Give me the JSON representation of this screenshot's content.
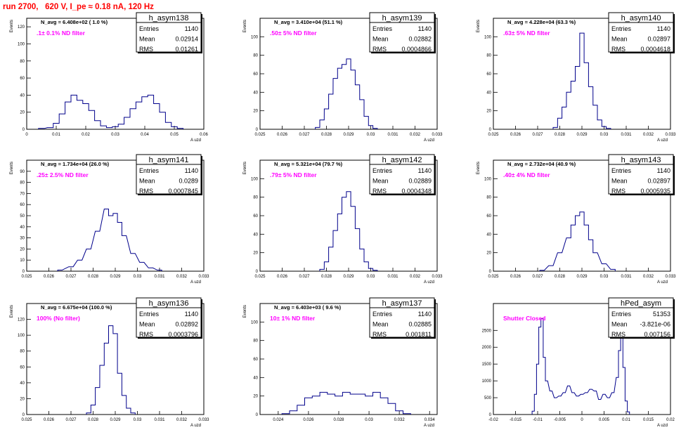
{
  "page": {
    "title": "run 2700,   620 V, I_pe ≈ 0.18 nA, 120 Hz"
  },
  "stat_labels": {
    "entries": "Entries",
    "mean": "Mean",
    "rms": "RMS"
  },
  "colors": {
    "histogram": "#00008b",
    "annotation": "#ff00ff",
    "title": "#ff0000",
    "frame": "#000000"
  },
  "chart_data": [
    {
      "type": "histogram",
      "name": "h_asym138",
      "title": "N_avg = 6.408e+02 ( 1.0 %)",
      "annotation": ".1± 0.1% ND filter",
      "stats": {
        "entries": "1140",
        "mean": "0.02914",
        "rms": "0.01261"
      },
      "xlabel": "A_uzd",
      "ylabel": "Events",
      "xlim": [
        0,
        0.06
      ],
      "ylim": [
        0,
        130
      ],
      "xticks": [
        0,
        0.01,
        0.02,
        0.03,
        0.04,
        0.05,
        0.06
      ],
      "xtick_labels": [
        "0",
        "0.01",
        "0.02",
        "0.03",
        "0.04",
        "0.05",
        "0.06"
      ],
      "yticks": [
        0,
        20,
        40,
        60,
        80,
        100,
        120
      ],
      "points": [
        [
          0.005,
          1
        ],
        [
          0.008,
          2
        ],
        [
          0.01,
          7
        ],
        [
          0.012,
          18
        ],
        [
          0.014,
          32
        ],
        [
          0.016,
          40
        ],
        [
          0.018,
          34
        ],
        [
          0.02,
          30
        ],
        [
          0.022,
          22
        ],
        [
          0.024,
          10
        ],
        [
          0.026,
          4
        ],
        [
          0.028,
          2
        ],
        [
          0.03,
          3
        ],
        [
          0.032,
          6
        ],
        [
          0.034,
          14
        ],
        [
          0.036,
          24
        ],
        [
          0.038,
          32
        ],
        [
          0.04,
          38
        ],
        [
          0.042,
          40
        ],
        [
          0.044,
          30
        ],
        [
          0.046,
          20
        ],
        [
          0.048,
          8
        ],
        [
          0.05,
          3
        ],
        [
          0.052,
          1
        ]
      ]
    },
    {
      "type": "histogram",
      "name": "h_asym139",
      "title": "N_avg = 3.410e+04 (51.1 %)",
      "annotation": ".50± 5% ND filter",
      "stats": {
        "entries": "1140",
        "mean": "0.02882",
        "rms": "0.0004866"
      },
      "xlabel": "A_uzd",
      "ylabel": "Events",
      "xlim": [
        0.025,
        0.033
      ],
      "ylim": [
        0,
        120
      ],
      "xticks": [
        0.025,
        0.026,
        0.027,
        0.028,
        0.029,
        0.03,
        0.031,
        0.032,
        0.033
      ],
      "xtick_labels": [
        "0.025",
        "0.026",
        "0.027",
        "0.028",
        "0.029",
        "0.03",
        "0.031",
        "0.032",
        "0.033"
      ],
      "yticks": [
        0,
        20,
        40,
        60,
        80,
        100
      ],
      "points": [
        [
          0.0276,
          2
        ],
        [
          0.0278,
          10
        ],
        [
          0.028,
          22
        ],
        [
          0.0282,
          38
        ],
        [
          0.0284,
          55
        ],
        [
          0.0286,
          66
        ],
        [
          0.0288,
          70
        ],
        [
          0.029,
          76
        ],
        [
          0.0292,
          64
        ],
        [
          0.0294,
          48
        ],
        [
          0.0296,
          32
        ],
        [
          0.0298,
          14
        ],
        [
          0.03,
          4
        ],
        [
          0.0302,
          1
        ]
      ]
    },
    {
      "type": "histogram",
      "name": "h_asym140",
      "title": "N_avg = 4.228e+04 (63.3 %)",
      "annotation": ".63± 5% ND filter",
      "stats": {
        "entries": "1140",
        "mean": "0.02897",
        "rms": "0.0004618"
      },
      "xlabel": "A_uzd",
      "ylabel": "Events",
      "xlim": [
        0.025,
        0.033
      ],
      "ylim": [
        0,
        120
      ],
      "xticks": [
        0.025,
        0.026,
        0.027,
        0.028,
        0.029,
        0.03,
        0.031,
        0.032,
        0.033
      ],
      "xtick_labels": [
        "0.025",
        "0.026",
        "0.027",
        "0.028",
        "0.029",
        "0.03",
        "0.031",
        "0.032",
        "0.033"
      ],
      "yticks": [
        0,
        20,
        40,
        60,
        80,
        100
      ],
      "points": [
        [
          0.0278,
          2
        ],
        [
          0.028,
          12
        ],
        [
          0.0282,
          24
        ],
        [
          0.0284,
          40
        ],
        [
          0.0286,
          52
        ],
        [
          0.0288,
          68
        ],
        [
          0.029,
          104
        ],
        [
          0.0292,
          72
        ],
        [
          0.0294,
          46
        ],
        [
          0.0296,
          26
        ],
        [
          0.0298,
          10
        ],
        [
          0.03,
          3
        ],
        [
          0.0302,
          1
        ]
      ]
    },
    {
      "type": "histogram",
      "name": "h_asym141",
      "title": "N_avg = 1.734e+04 (26.0 %)",
      "annotation": ".25± 2.5% ND filter",
      "stats": {
        "entries": "1140",
        "mean": "0.0289",
        "rms": "0.0007845"
      },
      "xlabel": "A_uzd",
      "ylabel": "Events",
      "xlim": [
        0.025,
        0.033
      ],
      "ylim": [
        0,
        100
      ],
      "xticks": [
        0.025,
        0.026,
        0.027,
        0.028,
        0.029,
        0.03,
        0.031,
        0.032,
        0.033
      ],
      "xtick_labels": [
        "0.025",
        "0.026",
        "0.027",
        "0.028",
        "0.029",
        "0.03",
        "0.031",
        "0.032",
        "0.033"
      ],
      "yticks": [
        0,
        10,
        20,
        30,
        40,
        50,
        60,
        70,
        80,
        90
      ],
      "points": [
        [
          0.0265,
          1
        ],
        [
          0.027,
          4
        ],
        [
          0.0274,
          10
        ],
        [
          0.0278,
          20
        ],
        [
          0.0282,
          36
        ],
        [
          0.0286,
          56
        ],
        [
          0.0288,
          50
        ],
        [
          0.029,
          52
        ],
        [
          0.0292,
          44
        ],
        [
          0.0294,
          32
        ],
        [
          0.0298,
          16
        ],
        [
          0.0302,
          8
        ],
        [
          0.0306,
          3
        ],
        [
          0.031,
          1
        ]
      ]
    },
    {
      "type": "histogram",
      "name": "h_asym142",
      "title": "N_avg = 5.321e+04 (79.7 %)",
      "annotation": ".79± 5% ND filter",
      "stats": {
        "entries": "1140",
        "mean": "0.02889",
        "rms": "0.0004348"
      },
      "xlabel": "A_uzd",
      "ylabel": "Events",
      "xlim": [
        0.025,
        0.033
      ],
      "ylim": [
        0,
        120
      ],
      "xticks": [
        0.025,
        0.026,
        0.027,
        0.028,
        0.029,
        0.03,
        0.031,
        0.032,
        0.033
      ],
      "xtick_labels": [
        "0.025",
        "0.026",
        "0.027",
        "0.028",
        "0.029",
        "0.03",
        "0.031",
        "0.032",
        "0.033"
      ],
      "yticks": [
        0,
        20,
        40,
        60,
        80,
        100
      ],
      "points": [
        [
          0.0278,
          2
        ],
        [
          0.028,
          10
        ],
        [
          0.0282,
          26
        ],
        [
          0.0284,
          44
        ],
        [
          0.0286,
          62
        ],
        [
          0.0288,
          80
        ],
        [
          0.029,
          86
        ],
        [
          0.0292,
          70
        ],
        [
          0.0294,
          46
        ],
        [
          0.0296,
          24
        ],
        [
          0.0298,
          10
        ],
        [
          0.03,
          3
        ],
        [
          0.0302,
          1
        ]
      ]
    },
    {
      "type": "histogram",
      "name": "h_asym143",
      "title": "N_avg = 2.732e+04 (40.9 %)",
      "annotation": ".40± 4% ND filter",
      "stats": {
        "entries": "1140",
        "mean": "0.02897",
        "rms": "0.0005935"
      },
      "xlabel": "A_uzd",
      "ylabel": "Events",
      "xlim": [
        0.025,
        0.033
      ],
      "ylim": [
        0,
        120
      ],
      "xticks": [
        0.025,
        0.026,
        0.027,
        0.028,
        0.029,
        0.03,
        0.031,
        0.032,
        0.033
      ],
      "xtick_labels": [
        "0.025",
        "0.026",
        "0.027",
        "0.028",
        "0.029",
        "0.03",
        "0.031",
        "0.032",
        "0.033"
      ],
      "yticks": [
        0,
        20,
        40,
        60,
        80,
        100
      ],
      "points": [
        [
          0.0272,
          1
        ],
        [
          0.0276,
          6
        ],
        [
          0.028,
          20
        ],
        [
          0.0284,
          36
        ],
        [
          0.0286,
          50
        ],
        [
          0.0288,
          60
        ],
        [
          0.029,
          64
        ],
        [
          0.0292,
          50
        ],
        [
          0.0294,
          34
        ],
        [
          0.0296,
          20
        ],
        [
          0.03,
          8
        ],
        [
          0.0304,
          2
        ]
      ]
    },
    {
      "type": "histogram",
      "name": "h_asym136",
      "title": "N_avg = 6.675e+04 (100.0 %)",
      "annotation": "100% (No filter)",
      "stats": {
        "entries": "1140",
        "mean": "0.02892",
        "rms": "0.0003796"
      },
      "xlabel": "A_uzd",
      "ylabel": "Events",
      "xlim": [
        0.025,
        0.033
      ],
      "ylim": [
        0,
        140
      ],
      "xticks": [
        0.025,
        0.026,
        0.027,
        0.028,
        0.029,
        0.03,
        0.031,
        0.032,
        0.033
      ],
      "xtick_labels": [
        "0.025",
        "0.026",
        "0.027",
        "0.028",
        "0.029",
        "0.03",
        "0.031",
        "0.032",
        "0.033"
      ],
      "yticks": [
        0,
        20,
        40,
        60,
        80,
        100,
        120
      ],
      "points": [
        [
          0.0278,
          2
        ],
        [
          0.028,
          12
        ],
        [
          0.0282,
          34
        ],
        [
          0.0284,
          62
        ],
        [
          0.0286,
          90
        ],
        [
          0.0288,
          112
        ],
        [
          0.029,
          102
        ],
        [
          0.0292,
          52
        ],
        [
          0.0294,
          24
        ],
        [
          0.0296,
          8
        ],
        [
          0.0298,
          2
        ]
      ]
    },
    {
      "type": "histogram",
      "name": "h_asym137",
      "title": "N_avg = 6.403e+03 ( 9.6 %)",
      "annotation": "10± 1% ND filter",
      "stats": {
        "entries": "1140",
        "mean": "0.02885",
        "rms": "0.001811"
      },
      "xlabel": "A_uzd",
      "ylabel": "Events",
      "xlim": [
        0.0228,
        0.0345
      ],
      "ylim": [
        0,
        120
      ],
      "xticks": [
        0.024,
        0.026,
        0.028,
        0.03,
        0.032,
        0.034
      ],
      "xtick_labels": [
        "0.024",
        "0.026",
        "0.028",
        "0.03",
        "0.032",
        "0.034"
      ],
      "yticks": [
        0,
        20,
        40,
        60,
        80,
        100
      ],
      "points": [
        [
          0.0245,
          1
        ],
        [
          0.025,
          4
        ],
        [
          0.0255,
          10
        ],
        [
          0.026,
          18
        ],
        [
          0.0265,
          20
        ],
        [
          0.027,
          24
        ],
        [
          0.0275,
          22
        ],
        [
          0.028,
          20
        ],
        [
          0.0285,
          24
        ],
        [
          0.029,
          22
        ],
        [
          0.0295,
          22
        ],
        [
          0.03,
          20
        ],
        [
          0.0305,
          24
        ],
        [
          0.031,
          18
        ],
        [
          0.0315,
          12
        ],
        [
          0.032,
          4
        ],
        [
          0.0325,
          1
        ]
      ]
    },
    {
      "type": "histogram",
      "name": "hPed_asym",
      "title": "",
      "annotation": "Shutter Closed",
      "stats": {
        "entries": "51353",
        "mean": "-3.821e-06",
        "rms": "0.007156"
      },
      "xlabel": "A_uzd",
      "ylabel": "",
      "xlim": [
        -0.02,
        0.02
      ],
      "ylim": [
        0,
        3300
      ],
      "xticks": [
        -0.02,
        -0.015,
        -0.01,
        -0.005,
        0,
        0.005,
        0.01,
        0.015,
        0.02
      ],
      "xtick_labels": [
        "-0.02",
        "-0.015",
        "-0.01",
        "-0.005",
        "0",
        "0.005",
        "0.01",
        "0.015",
        "0.02"
      ],
      "yticks": [
        0,
        500,
        1000,
        1500,
        2000,
        2500
      ],
      "points": [
        [
          -0.011,
          100
        ],
        [
          -0.0105,
          600
        ],
        [
          -0.01,
          1500
        ],
        [
          -0.0095,
          2600
        ],
        [
          -0.009,
          2850
        ],
        [
          -0.0085,
          1700
        ],
        [
          -0.008,
          1000
        ],
        [
          -0.007,
          700
        ],
        [
          -0.006,
          500
        ],
        [
          -0.005,
          550
        ],
        [
          -0.004,
          650
        ],
        [
          -0.003,
          850
        ],
        [
          -0.002,
          650
        ],
        [
          -0.001,
          550
        ],
        [
          0,
          600
        ],
        [
          0.001,
          650
        ],
        [
          0.002,
          750
        ],
        [
          0.003,
          700
        ],
        [
          0.004,
          450
        ],
        [
          0.005,
          600
        ],
        [
          0.006,
          500
        ],
        [
          0.007,
          650
        ],
        [
          0.008,
          1100
        ],
        [
          0.0085,
          1900
        ],
        [
          0.009,
          2300
        ],
        [
          0.0095,
          1400
        ],
        [
          0.01,
          400
        ],
        [
          0.0105,
          80
        ]
      ]
    }
  ]
}
